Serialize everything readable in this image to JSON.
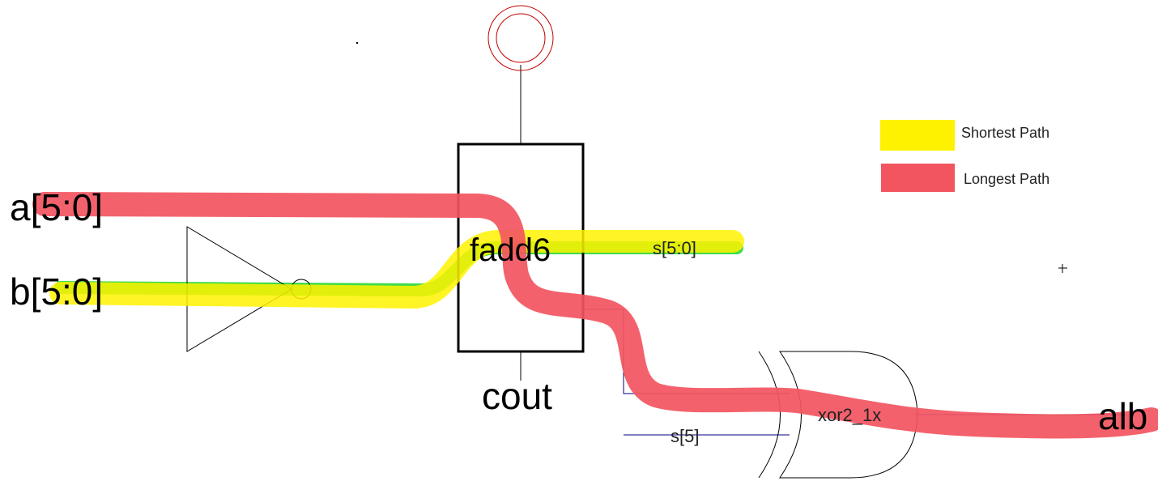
{
  "labels": {
    "input_a": "a[5:0]",
    "input_b": "b[5:0]",
    "adder": "fadd6",
    "sum": "s[5:0]",
    "carry": "cout",
    "xor_gate": "xor2_1x",
    "xor_input": "s[5]",
    "output": "alb"
  },
  "legend": {
    "items": [
      {
        "label": "Shortest Path",
        "color": "#fff200"
      },
      {
        "label": "Longest Path",
        "color": "#f25560"
      }
    ]
  },
  "colors": {
    "shortest_path": "#fff200",
    "longest_path": "#f25560",
    "green_wire": "#3fdc4a",
    "circle": "#c00000",
    "wire": "#000080"
  }
}
